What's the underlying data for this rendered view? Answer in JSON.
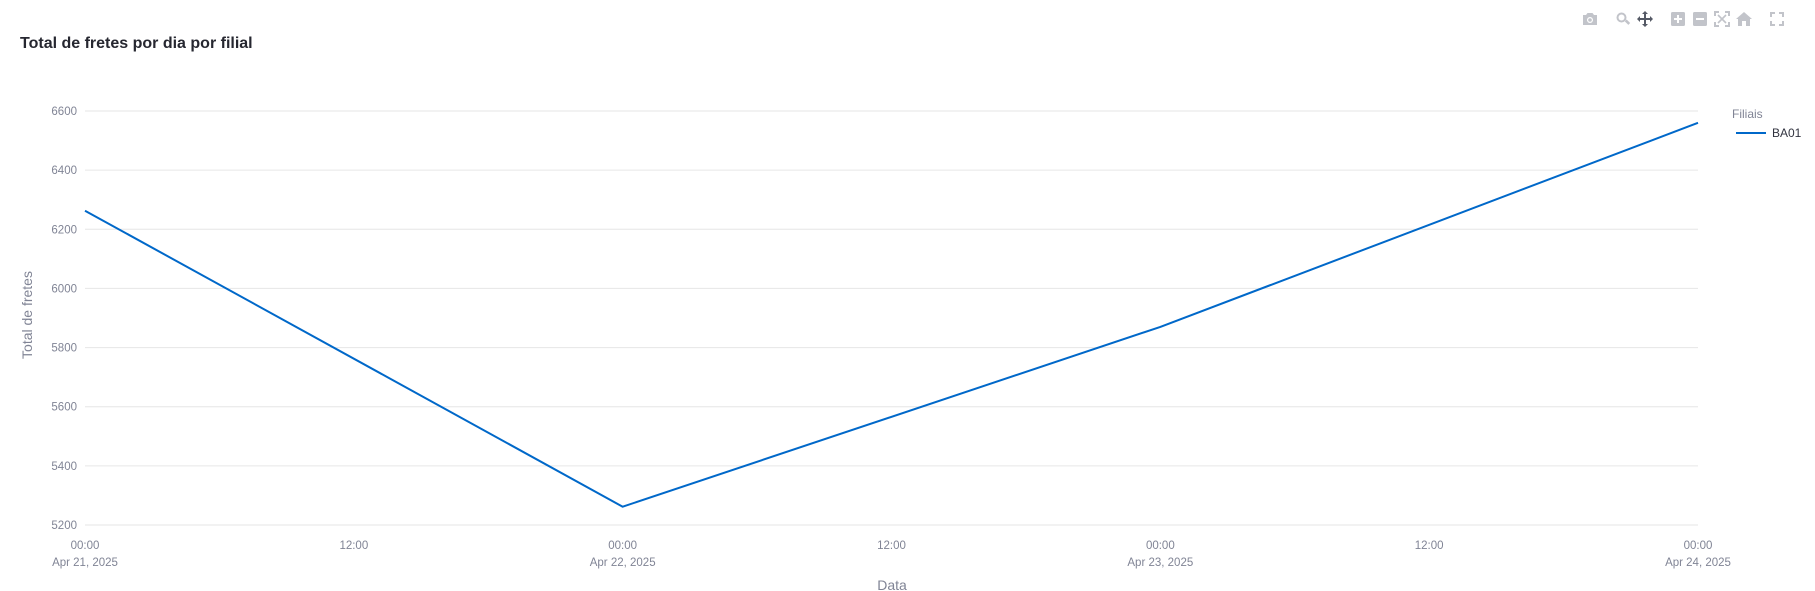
{
  "modebar": {
    "icons": [
      "camera-icon",
      "zoom-icon",
      "pan-icon",
      "zoom-in-icon",
      "zoom-out-icon",
      "autoscale-icon",
      "home-icon",
      "fullscreen-icon"
    ]
  },
  "chart_data": {
    "type": "line",
    "title": "Total de fretes por dia por filial",
    "xlabel": "Data",
    "ylabel": "Total de fretes",
    "legend_title": "Filiais",
    "legend_position": "top-right",
    "grid": true,
    "x_ticks": [
      {
        "time": "00:00",
        "date": "Apr 21, 2025"
      },
      {
        "time": "12:00",
        "date": ""
      },
      {
        "time": "00:00",
        "date": "Apr 22, 2025"
      },
      {
        "time": "12:00",
        "date": ""
      },
      {
        "time": "00:00",
        "date": "Apr 23, 2025"
      },
      {
        "time": "12:00",
        "date": ""
      },
      {
        "time": "00:00",
        "date": "Apr 24, 2025"
      }
    ],
    "y_ticks": [
      "6600",
      "6400",
      "6200",
      "6000",
      "5800",
      "5600",
      "5400",
      "5200"
    ],
    "xlim": [
      "2025-04-21 00:00",
      "2025-04-24 00:00"
    ],
    "ylim": [
      5200,
      6600
    ],
    "series": [
      {
        "name": "BA01",
        "color": "#0068c9",
        "x": [
          "2025-04-21",
          "2025-04-22",
          "2025-04-23",
          "2025-04-24"
        ],
        "y": [
          6263,
          5262,
          5870,
          6560
        ]
      }
    ]
  }
}
